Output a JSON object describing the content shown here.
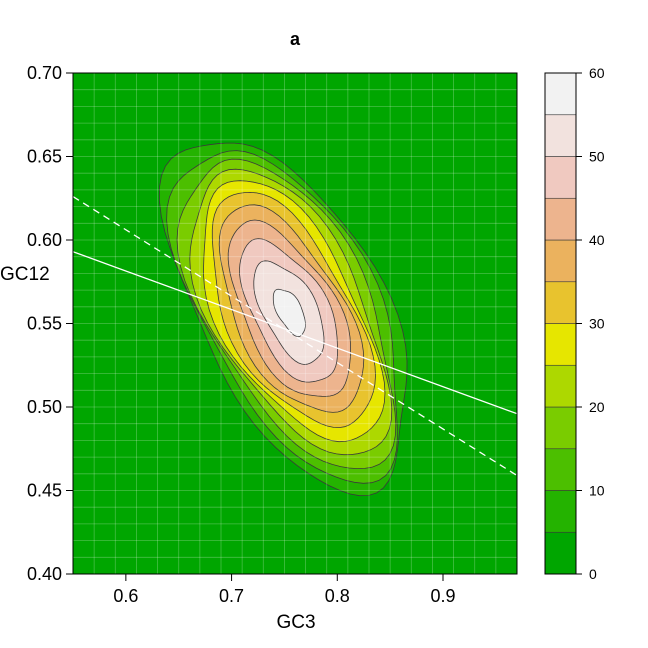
{
  "chart_data": {
    "type": "heatmap",
    "subtype": "filled-contour",
    "title": "a",
    "xlabel": "GC3",
    "ylabel": "GC12",
    "xlim": [
      0.55,
      0.97
    ],
    "ylim": [
      0.4,
      0.7
    ],
    "x_ticks": [
      "0.6",
      "0.7",
      "0.8",
      "0.9"
    ],
    "y_ticks": [
      "0.40",
      "0.45",
      "0.50",
      "0.55",
      "0.60",
      "0.65",
      "0.70"
    ],
    "grid": true,
    "colorbar": {
      "levels": [
        0,
        5,
        10,
        15,
        20,
        25,
        30,
        35,
        40,
        45,
        50,
        55,
        60
      ],
      "tick_labels": [
        "0",
        "10",
        "20",
        "30",
        "40",
        "50",
        "60"
      ],
      "colors": [
        "#00A600",
        "#24B300",
        "#4CBF00",
        "#7ACC00",
        "#ADD800",
        "#E6E600",
        "#E8C32E",
        "#EBB25E",
        "#EDB48E",
        "#F0C9C0",
        "#F2E2DE",
        "#F2F2F2"
      ]
    },
    "density": {
      "center": [
        0.755,
        0.557
      ],
      "peak_value": 57,
      "description_levels": [
        5,
        10,
        15,
        20,
        25,
        30,
        35,
        40,
        45,
        50,
        55
      ]
    },
    "lines": [
      {
        "style": "solid",
        "color": "#ffffff",
        "x": [
          0.55,
          0.97
        ],
        "y": [
          0.593,
          0.496
        ]
      },
      {
        "style": "dashed",
        "color": "#ffffff",
        "x": [
          0.55,
          0.97
        ],
        "y": [
          0.626,
          0.459
        ]
      }
    ],
    "legend": "none"
  }
}
